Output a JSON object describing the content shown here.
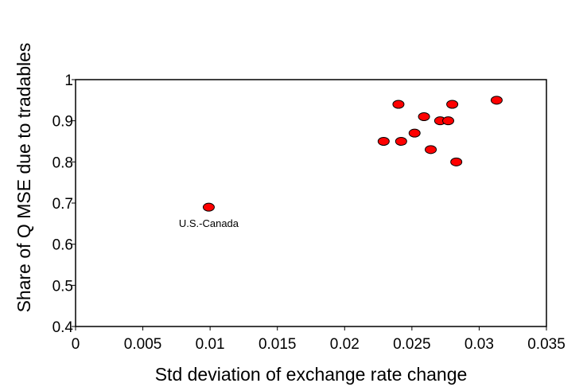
{
  "chart_data": {
    "type": "scatter",
    "xlabel": "Std deviation of exchange rate change",
    "ylabel": "Share of Q MSE due to tradables",
    "xlim": [
      0,
      0.035
    ],
    "ylim": [
      0.4,
      1
    ],
    "x_ticks": [
      "0",
      "0.005",
      "0.01",
      "0.015",
      "0.02",
      "0.025",
      "0.03",
      "0.035"
    ],
    "y_ticks": [
      "0.4",
      "0.5",
      "0.6",
      "0.7",
      "0.8",
      "0.9",
      "1"
    ],
    "grid": false,
    "marker_color": "#ff0000",
    "points": [
      {
        "x": 0.0099,
        "y": 0.69
      },
      {
        "x": 0.0229,
        "y": 0.85
      },
      {
        "x": 0.024,
        "y": 0.94
      },
      {
        "x": 0.0242,
        "y": 0.85
      },
      {
        "x": 0.0252,
        "y": 0.87
      },
      {
        "x": 0.0259,
        "y": 0.91
      },
      {
        "x": 0.0264,
        "y": 0.83
      },
      {
        "x": 0.0271,
        "y": 0.9
      },
      {
        "x": 0.0277,
        "y": 0.9
      },
      {
        "x": 0.028,
        "y": 0.94
      },
      {
        "x": 0.0283,
        "y": 0.8
      },
      {
        "x": 0.0313,
        "y": 0.95
      }
    ],
    "annotations": [
      {
        "text": "U.S.-Canada",
        "x": 0.0099,
        "y": 0.69
      }
    ]
  }
}
